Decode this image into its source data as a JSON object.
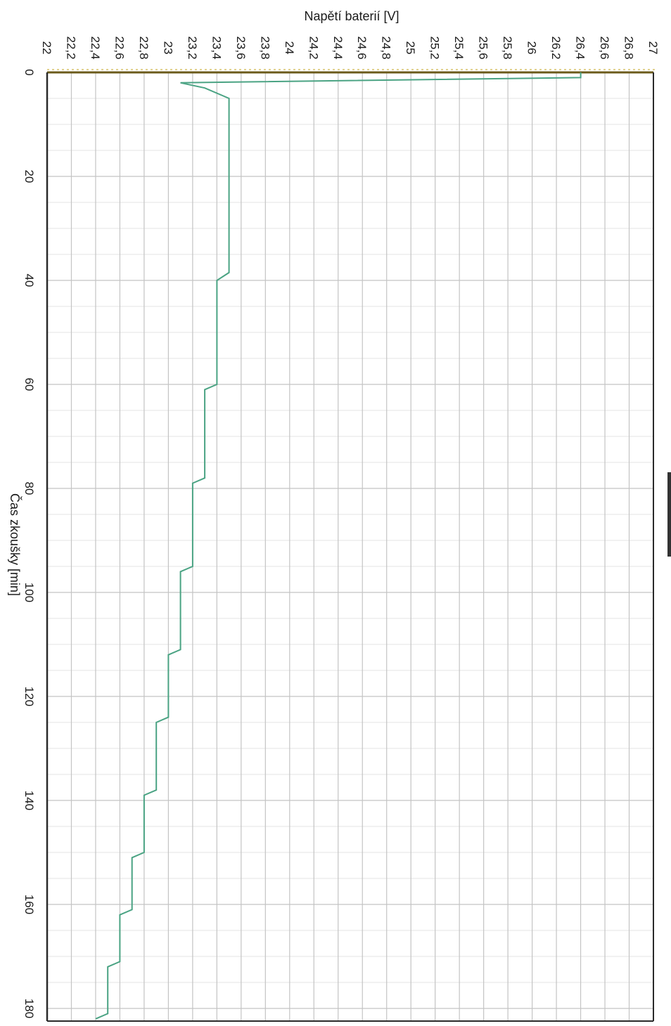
{
  "chart_data": {
    "type": "line",
    "orientation": "rotated-90-clockwise",
    "value_axis": {
      "label": "Napětí baterií [V]",
      "range": [
        22,
        27
      ],
      "ticks": [
        "22",
        "22,2",
        "22,4",
        "22,6",
        "22,8",
        "23",
        "23,2",
        "23,4",
        "23,6",
        "23,8",
        "24",
        "24,2",
        "24,4",
        "24,6",
        "24,8",
        "25",
        "25,2",
        "25,4",
        "25,6",
        "25,8",
        "26",
        "26,2",
        "26,4",
        "26,6",
        "26,8",
        "27"
      ]
    },
    "time_axis": {
      "label": "Čas zkoušky [min]",
      "range": [
        0,
        180
      ],
      "ticks": [
        "0",
        "20",
        "40",
        "60",
        "80",
        "100",
        "120",
        "140",
        "160",
        "180"
      ]
    },
    "grid": true,
    "series": [
      {
        "color": "#4aa383",
        "points": [
          [
            0,
            26.4
          ],
          [
            1,
            26.4
          ],
          [
            2,
            23.1
          ],
          [
            3,
            23.3
          ],
          [
            5,
            23.5
          ],
          [
            38.5,
            23.5
          ],
          [
            40,
            23.4
          ],
          [
            60,
            23.4
          ],
          [
            61,
            23.3
          ],
          [
            78,
            23.3
          ],
          [
            79,
            23.2
          ],
          [
            95,
            23.2
          ],
          [
            96,
            23.1
          ],
          [
            111,
            23.1
          ],
          [
            112,
            23.0
          ],
          [
            124,
            23.0
          ],
          [
            125,
            22.9
          ],
          [
            138,
            22.9
          ],
          [
            139,
            22.8
          ],
          [
            150,
            22.8
          ],
          [
            151,
            22.7
          ],
          [
            161,
            22.7
          ],
          [
            162,
            22.6
          ],
          [
            171,
            22.6
          ],
          [
            172,
            22.5
          ],
          [
            181,
            22.5
          ],
          [
            182,
            22.4
          ]
        ]
      }
    ]
  }
}
